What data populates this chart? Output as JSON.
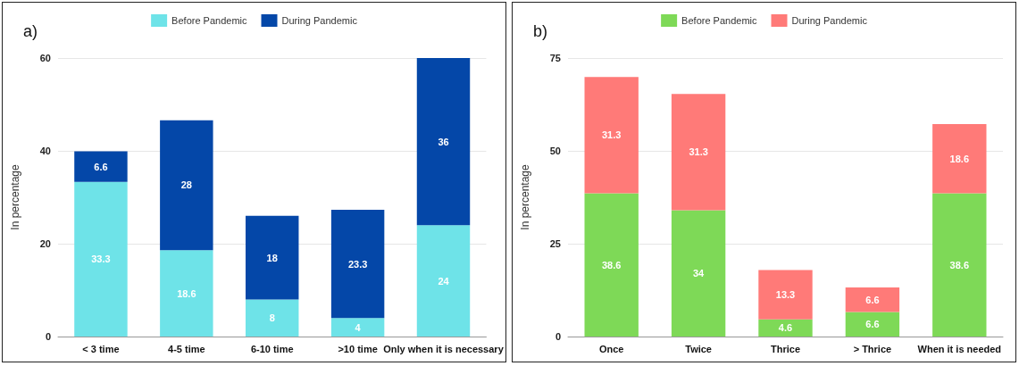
{
  "chart_data": [
    {
      "type": "bar",
      "title": "a)",
      "ylabel": "In percentage",
      "stacked": true,
      "legend": "top",
      "grid": "y",
      "data_labels": true,
      "categories": [
        "< 3 time",
        "4-5 time",
        "6-10 time",
        ">10 time",
        "Only when it is necessary"
      ],
      "ylim": [
        0,
        60
      ],
      "yticks": [
        0,
        20,
        40,
        60
      ],
      "series": [
        {
          "name": "Before Pandemic",
          "color": "#6ee3e8",
          "values": [
            33.3,
            18.6,
            8,
            4,
            24
          ]
        },
        {
          "name": "During Pandemic",
          "color": "#0447a8",
          "values": [
            6.6,
            28,
            18,
            23.3,
            36
          ]
        }
      ]
    },
    {
      "type": "bar",
      "title": "b)",
      "ylabel": "In percentage",
      "stacked": true,
      "legend": "top",
      "grid": "y",
      "data_labels": true,
      "categories": [
        "Once",
        "Twice",
        "Thrice",
        "> Thrice",
        "When it is needed"
      ],
      "ylim": [
        0,
        75
      ],
      "yticks": [
        0,
        25,
        50,
        75
      ],
      "series": [
        {
          "name": "Before Pandemic",
          "color": "#7ed957",
          "values": [
            38.6,
            34,
            4.6,
            6.6,
            38.6
          ]
        },
        {
          "name": "During Pandemic",
          "color": "#ff7a78",
          "values": [
            31.3,
            31.3,
            13.3,
            6.6,
            18.6
          ]
        }
      ]
    }
  ]
}
